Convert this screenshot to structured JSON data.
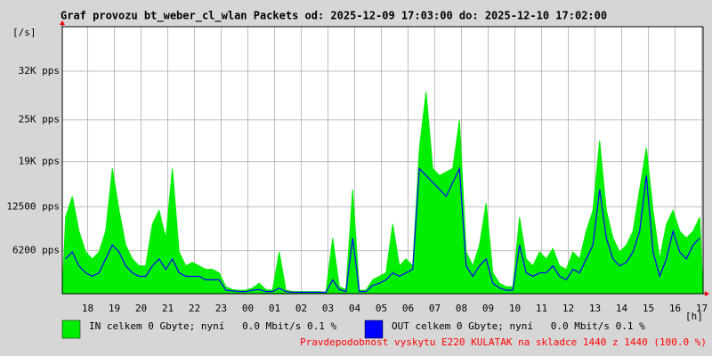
{
  "chart_data": {
    "type": "area",
    "title": "Graf provozu bt_weber_cl_wlan Packets od: 2025-12-09 17:03:00 do: 2025-12-10 17:02:00",
    "y_unit": "[/s]",
    "x_unit": "[h]",
    "ylim": [
      0,
      38400
    ],
    "yticks": [
      {
        "value": 6200,
        "label": "6200 pps"
      },
      {
        "value": 12500,
        "label": "12500 pps"
      },
      {
        "value": 19000,
        "label": "19K pps"
      },
      {
        "value": 25000,
        "label": "25K pps"
      },
      {
        "value": 32000,
        "label": "32K pps"
      }
    ],
    "xlabels": [
      "18",
      "19",
      "20",
      "21",
      "22",
      "23",
      "00",
      "01",
      "02",
      "03",
      "04",
      "05",
      "06",
      "07",
      "08",
      "09",
      "10",
      "11",
      "12",
      "13",
      "14",
      "15",
      "16",
      "17"
    ],
    "grid": true,
    "series": [
      {
        "name": "IN celkem 0 Gbyte; nyní   0.0 Mbit/s 0.1 %",
        "color": "#00ee00",
        "values": [
          11000,
          14000,
          9000,
          6000,
          5000,
          6000,
          9000,
          18000,
          12000,
          7000,
          5000,
          4000,
          4000,
          10000,
          12000,
          8000,
          18000,
          6000,
          4000,
          4500,
          4000,
          3500,
          3500,
          3000,
          1000,
          600,
          500,
          500,
          800,
          1500,
          600,
          500,
          6000,
          500,
          300,
          300,
          300,
          300,
          300,
          200,
          8000,
          1000,
          600,
          15000,
          500,
          500,
          2000,
          2500,
          3000,
          10000,
          4000,
          5000,
          4000,
          21000,
          29000,
          18000,
          17000,
          17500,
          18000,
          25000,
          6000,
          4000,
          7000,
          13000,
          3000,
          1500,
          1000,
          1000,
          11000,
          5000,
          4000,
          6000,
          5000,
          6500,
          4000,
          3500,
          6000,
          5000,
          9000,
          12000,
          22000,
          12000,
          8000,
          6000,
          7000,
          9000,
          15000,
          21000,
          12000,
          5000,
          10000,
          12000,
          9000,
          8000,
          9000,
          11000
        ]
      },
      {
        "name": "OUT celkem 0 Gbyte; nyní   0.0 Mbit/s 0.1 %",
        "color": "#0000ff",
        "values": [
          5000,
          6000,
          4000,
          3000,
          2500,
          3000,
          5000,
          7000,
          6000,
          4000,
          3000,
          2500,
          2500,
          4000,
          5000,
          3500,
          5000,
          3000,
          2500,
          2500,
          2500,
          2000,
          2000,
          2000,
          500,
          400,
          300,
          300,
          500,
          600,
          300,
          300,
          800,
          300,
          200,
          200,
          200,
          200,
          200,
          200,
          2000,
          600,
          300,
          8000,
          300,
          300,
          1200,
          1500,
          2000,
          3000,
          2500,
          3000,
          3500,
          18000,
          17000,
          16000,
          15000,
          14000,
          16000,
          18000,
          4000,
          2500,
          4000,
          5000,
          1500,
          800,
          500,
          500,
          7000,
          3000,
          2500,
          3000,
          3000,
          4000,
          2500,
          2000,
          3500,
          3000,
          5000,
          7000,
          15000,
          8000,
          5000,
          4000,
          4500,
          6000,
          9000,
          17000,
          6000,
          2500,
          5000,
          9000,
          6000,
          5000,
          7000,
          8000
        ]
      }
    ],
    "footer": "Pravdepodobnost vyskytu E220 KULATAK na skladce 1440 z 1440 (100.0 %)"
  }
}
